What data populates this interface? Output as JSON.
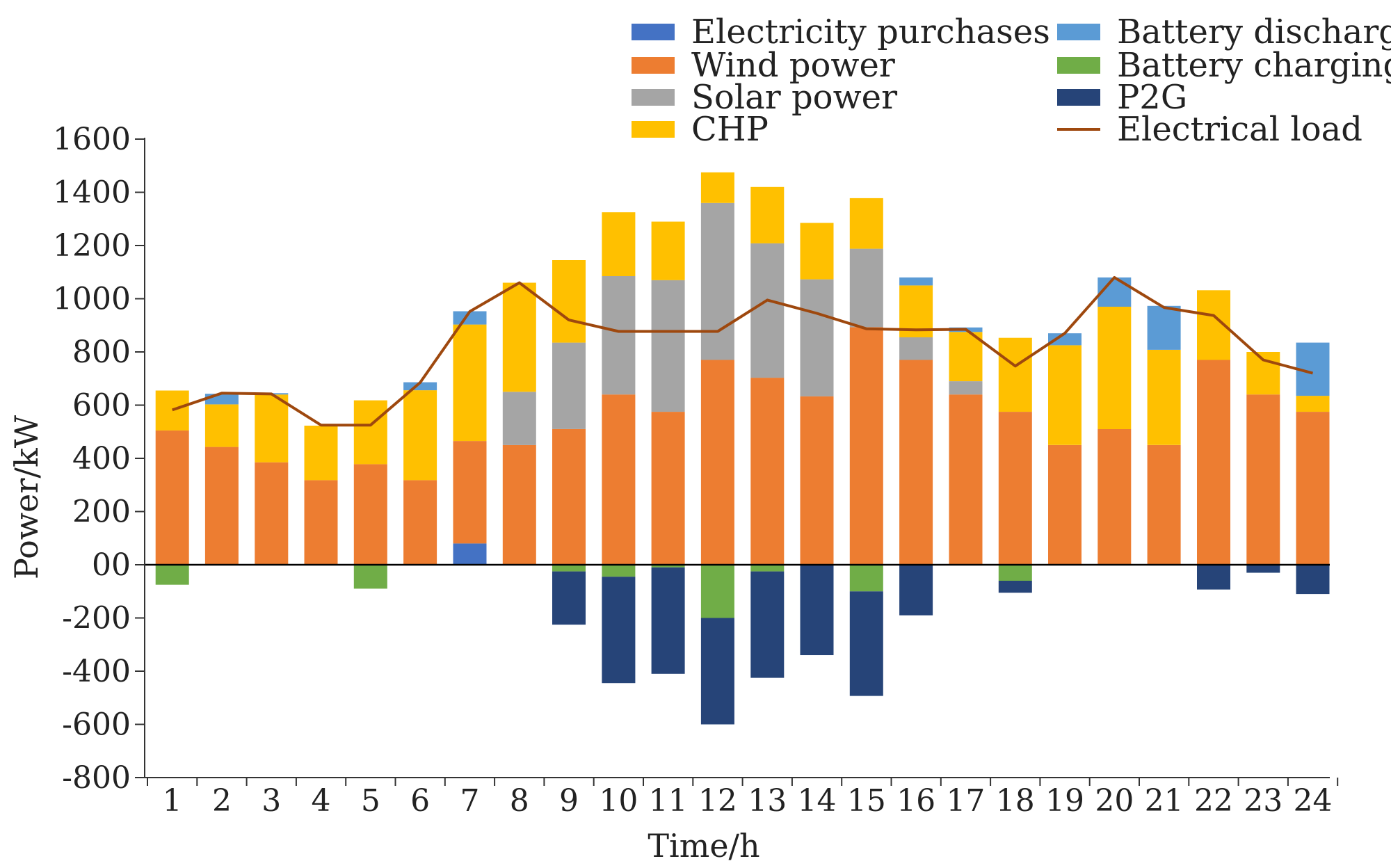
{
  "chart_data": {
    "type": "bar",
    "stacked": true,
    "title": "",
    "xlabel": "Time/h",
    "ylabel": "Power/kW",
    "ylim": [
      -800,
      1600
    ],
    "yticks": [
      1600,
      1400,
      1200,
      1000,
      800,
      600,
      400,
      200,
      0,
      -200,
      -400,
      -600,
      -800
    ],
    "ytick_labels": [
      "1600",
      "1400",
      "1200",
      "1000",
      "800",
      "600",
      "400",
      "200",
      "00",
      "-200",
      "-400",
      "-600",
      "-800"
    ],
    "categories": [
      "1",
      "2",
      "3",
      "4",
      "5",
      "6",
      "7",
      "8",
      "9",
      "10",
      "11",
      "12",
      "13",
      "14",
      "15",
      "16",
      "17",
      "18",
      "19",
      "20",
      "21",
      "22",
      "23",
      "24"
    ],
    "grid": false,
    "legend_position": "top-right",
    "series": [
      {
        "name": "Electricity purchases",
        "color": "#4472C4",
        "values": [
          0,
          0,
          0,
          0,
          0,
          0,
          80,
          0,
          0,
          0,
          0,
          0,
          0,
          0,
          0,
          0,
          0,
          0,
          0,
          0,
          0,
          0,
          0,
          0
        ]
      },
      {
        "name": "Wind power",
        "color": "#ED7D31",
        "values": [
          505,
          443,
          385,
          318,
          378,
          318,
          385,
          450,
          510,
          640,
          575,
          770,
          703,
          633,
          893,
          770,
          640,
          575,
          450,
          510,
          450,
          770,
          640,
          575
        ]
      },
      {
        "name": "Solar power",
        "color": "#A5A5A5",
        "values": [
          0,
          0,
          0,
          0,
          0,
          0,
          0,
          200,
          325,
          445,
          495,
          590,
          505,
          440,
          295,
          85,
          50,
          0,
          0,
          0,
          0,
          0,
          0,
          0
        ]
      },
      {
        "name": "CHP",
        "color": "#FFC000",
        "values": [
          150,
          160,
          255,
          205,
          240,
          338,
          438,
          410,
          310,
          240,
          220,
          115,
          212,
          212,
          190,
          195,
          185,
          278,
          375,
          460,
          358,
          262,
          160,
          60
        ]
      },
      {
        "name": "Battery discharge",
        "color": "#5B9BD5",
        "values": [
          0,
          40,
          5,
          0,
          0,
          30,
          50,
          0,
          0,
          0,
          0,
          0,
          0,
          0,
          0,
          30,
          17,
          0,
          45,
          110,
          165,
          0,
          0,
          200
        ]
      },
      {
        "name": "Battery charging",
        "color": "#70AD47",
        "values": [
          -75,
          0,
          0,
          0,
          -90,
          0,
          0,
          0,
          -25,
          -45,
          -10,
          -200,
          -25,
          0,
          -100,
          0,
          0,
          -60,
          0,
          0,
          0,
          0,
          0,
          0
        ]
      },
      {
        "name": "P2G",
        "color": "#264478",
        "values": [
          0,
          0,
          0,
          0,
          0,
          0,
          0,
          0,
          -200,
          -400,
          -400,
          -400,
          -400,
          -340,
          -393,
          -190,
          0,
          -45,
          0,
          0,
          0,
          -93,
          -30,
          -110
        ]
      }
    ],
    "line_series": {
      "name": "Electrical load",
      "color": "#9E480E",
      "values": [
        582,
        645,
        642,
        525,
        525,
        685,
        952,
        1060,
        920,
        877,
        877,
        877,
        995,
        945,
        887,
        883,
        885,
        747,
        870,
        1080,
        967,
        937,
        770,
        720
      ]
    }
  }
}
